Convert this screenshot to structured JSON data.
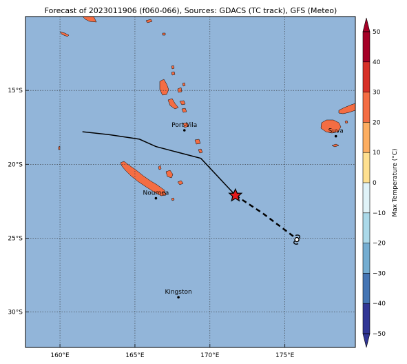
{
  "title": "Forecast of 2023011906 (f060-066), Sources: GDACS (TC track), GFS (Meteo)",
  "map": {
    "lon_range": [
      157.7,
      179.7
    ],
    "lat_range": [
      -32.4,
      -10.0
    ],
    "lon_ticks": [
      {
        "value": 160,
        "label": "160°E"
      },
      {
        "value": 165,
        "label": "165°E"
      },
      {
        "value": 170,
        "label": "170°E"
      },
      {
        "value": 175,
        "label": "175°E"
      }
    ],
    "lat_ticks": [
      {
        "value": -15,
        "label": "15°S"
      },
      {
        "value": -20,
        "label": "20°S"
      },
      {
        "value": -25,
        "label": "25°S"
      },
      {
        "value": -30,
        "label": "30°S"
      }
    ],
    "ocean_color": "#92b5d9",
    "land_color": "#f46d43",
    "cities": [
      {
        "name": "Port-Vila",
        "lon": 168.3,
        "lat": -17.7
      },
      {
        "name": "Suva",
        "lon": 178.4,
        "lat": -18.1
      },
      {
        "name": "Noumea",
        "lon": 166.4,
        "lat": -22.3
      },
      {
        "name": "Kingston",
        "lon": 167.9,
        "lat": -29.0
      }
    ]
  },
  "track": {
    "past": [
      [
        161.5,
        -17.8
      ],
      [
        163.3,
        -18.0
      ],
      [
        165.3,
        -18.3
      ],
      [
        166.4,
        -18.8
      ],
      [
        169.4,
        -19.6
      ],
      [
        171.7,
        -22.1
      ]
    ],
    "forecast": [
      [
        171.7,
        -22.1
      ],
      [
        173.5,
        -23.3
      ],
      [
        175.6,
        -24.9
      ]
    ],
    "current": [
      171.7,
      -22.1
    ],
    "cyclone_symbol": [
      175.8,
      -25.1
    ]
  },
  "colorbar": {
    "label": "Max Temperature (°C)",
    "ticks": [
      "50",
      "40",
      "30",
      "20",
      "10",
      "0",
      "−10",
      "−20",
      "−30",
      "−40",
      "−50"
    ],
    "colors": [
      "#a50026",
      "#d73027",
      "#f46d43",
      "#fdae61",
      "#fee090",
      "#ffffbf",
      "#e0f3f8",
      "#abd9e9",
      "#74add1",
      "#4575b4",
      "#313695"
    ]
  }
}
